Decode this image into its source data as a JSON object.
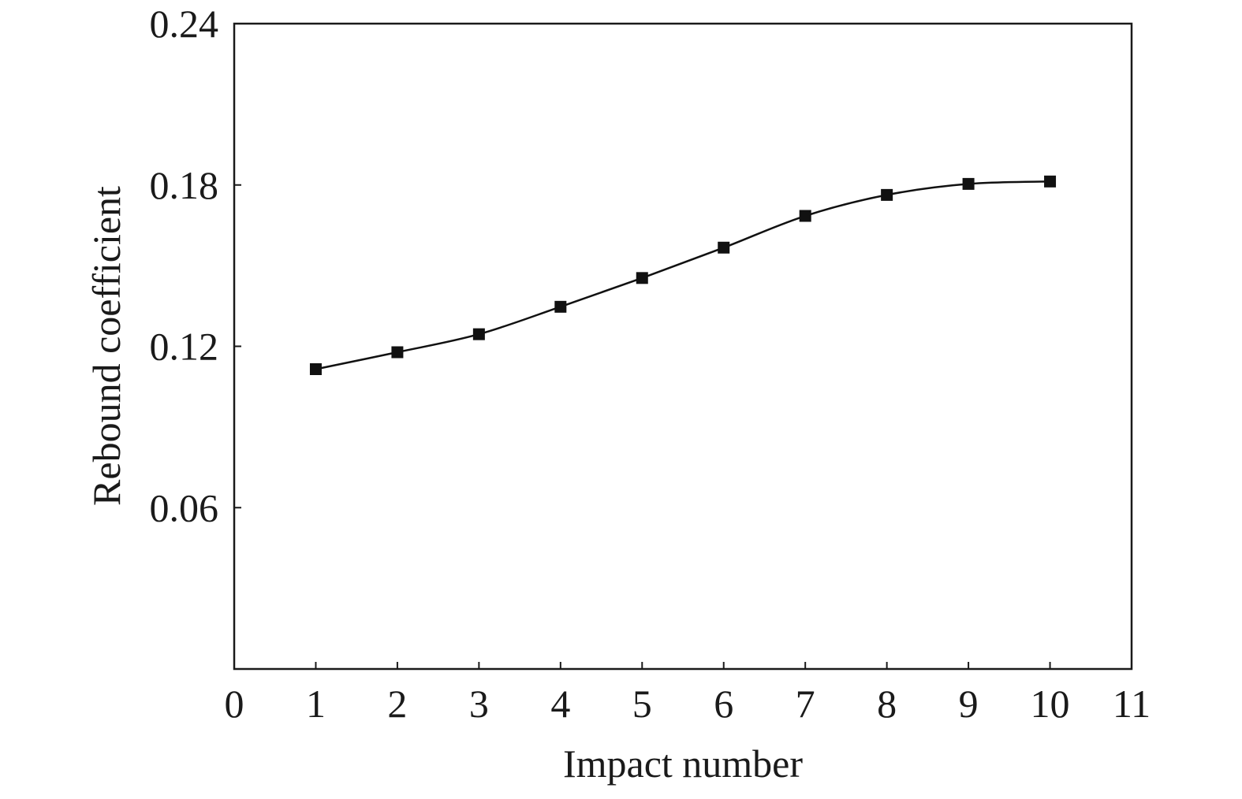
{
  "chart_data": {
    "type": "line",
    "title": "",
    "xlabel": "Impact number",
    "ylabel": "Rebound coefficient",
    "xlim": [
      0,
      11
    ],
    "ylim": [
      0,
      0.24
    ],
    "x_ticks": [
      "0",
      "1",
      "2",
      "3",
      "4",
      "5",
      "6",
      "7",
      "8",
      "9",
      "10",
      "11"
    ],
    "y_ticks": [
      "0.06",
      "0.12",
      "0.18",
      "0.24"
    ],
    "grid": false,
    "legend": "none",
    "series": [
      {
        "marker": "square",
        "color": "#111111",
        "x": [
          1,
          2,
          3,
          4,
          5,
          6,
          7,
          8,
          9,
          10
        ],
        "y": [
          0.1115,
          0.1178,
          0.1245,
          0.1347,
          0.1454,
          0.1567,
          0.1685,
          0.1763,
          0.1804,
          0.1813
        ]
      }
    ]
  }
}
